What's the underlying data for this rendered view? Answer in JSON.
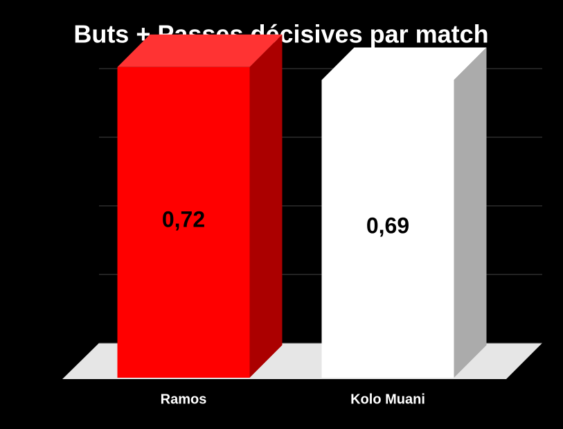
{
  "chart_data": {
    "type": "bar3d",
    "title": "Buts + Passes décisives par match",
    "categories": [
      "Ramos",
      "Kolo Muani"
    ],
    "values": [
      0.72,
      0.69
    ],
    "value_labels": [
      "0,72",
      "0,69"
    ],
    "colors": [
      "#ff0000",
      "#ffffff"
    ],
    "ylim": [
      0,
      0.8
    ],
    "yticks": [
      0,
      0.2,
      0.4,
      0.6,
      0.8
    ],
    "grid": true
  }
}
